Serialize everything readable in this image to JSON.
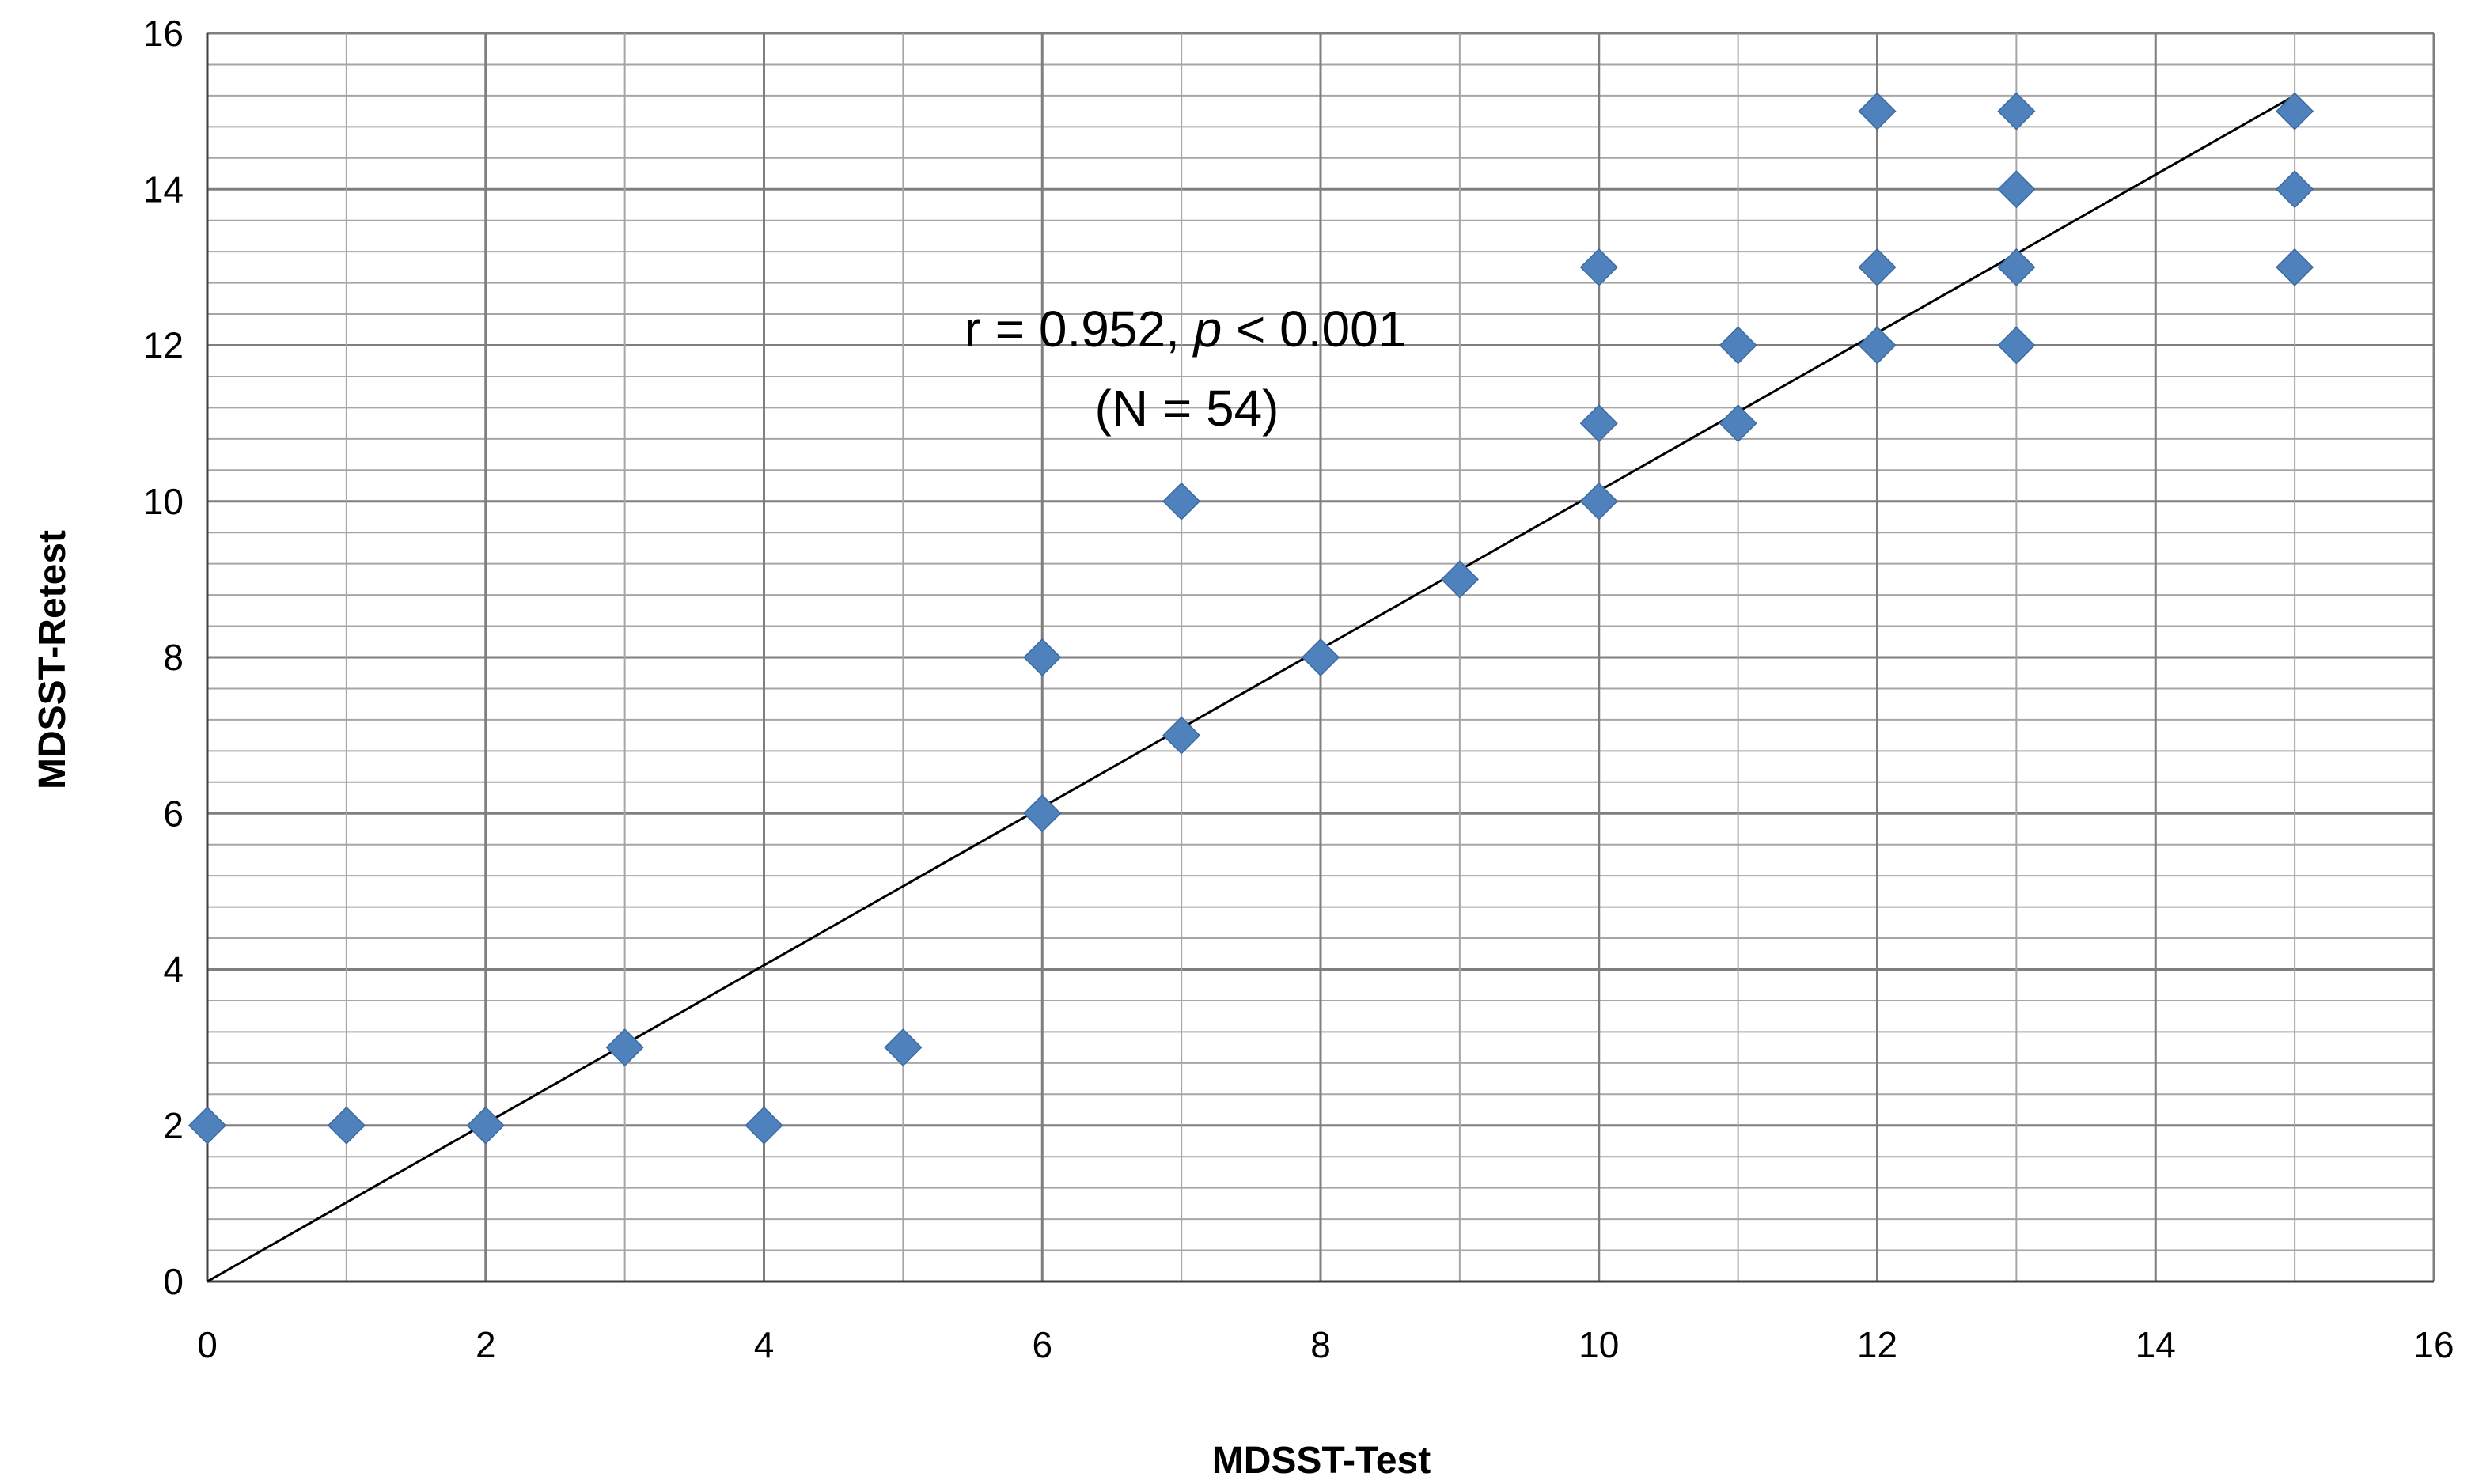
{
  "chart_data": {
    "type": "scatter",
    "xlabel": "MDSST-Test",
    "ylabel": "MDSST-Retest",
    "xlim": [
      0,
      16
    ],
    "ylim": [
      0,
      16
    ],
    "xticks": [
      "0",
      "2",
      "4",
      "6",
      "8",
      "10",
      "12",
      "14",
      "16"
    ],
    "yticks": [
      "0",
      "2",
      "4",
      "6",
      "8",
      "10",
      "12",
      "14",
      "16"
    ],
    "grid": true,
    "marker_color": "#4f81bd",
    "marker_shape": "diamond",
    "points": [
      [
        0,
        2
      ],
      [
        1,
        2
      ],
      [
        2,
        2
      ],
      [
        3,
        3
      ],
      [
        4,
        2
      ],
      [
        5,
        3
      ],
      [
        6,
        6
      ],
      [
        6,
        8
      ],
      [
        7,
        7
      ],
      [
        7,
        10
      ],
      [
        8,
        8
      ],
      [
        9,
        9
      ],
      [
        10,
        10
      ],
      [
        10,
        11
      ],
      [
        10,
        13
      ],
      [
        11,
        11
      ],
      [
        11,
        12
      ],
      [
        12,
        12
      ],
      [
        12,
        13
      ],
      [
        12,
        15
      ],
      [
        13,
        12
      ],
      [
        13,
        13
      ],
      [
        13,
        14
      ],
      [
        13,
        15
      ],
      [
        15,
        13
      ],
      [
        15,
        14
      ],
      [
        15,
        15
      ]
    ],
    "trendline": {
      "x": [
        0,
        15
      ],
      "y": [
        0,
        15.2
      ]
    },
    "annotation": {
      "line1_a": "r = 0.952, ",
      "line1_p": "p",
      "line1_b": " < 0.001",
      "line2": "(N = 54)"
    }
  }
}
